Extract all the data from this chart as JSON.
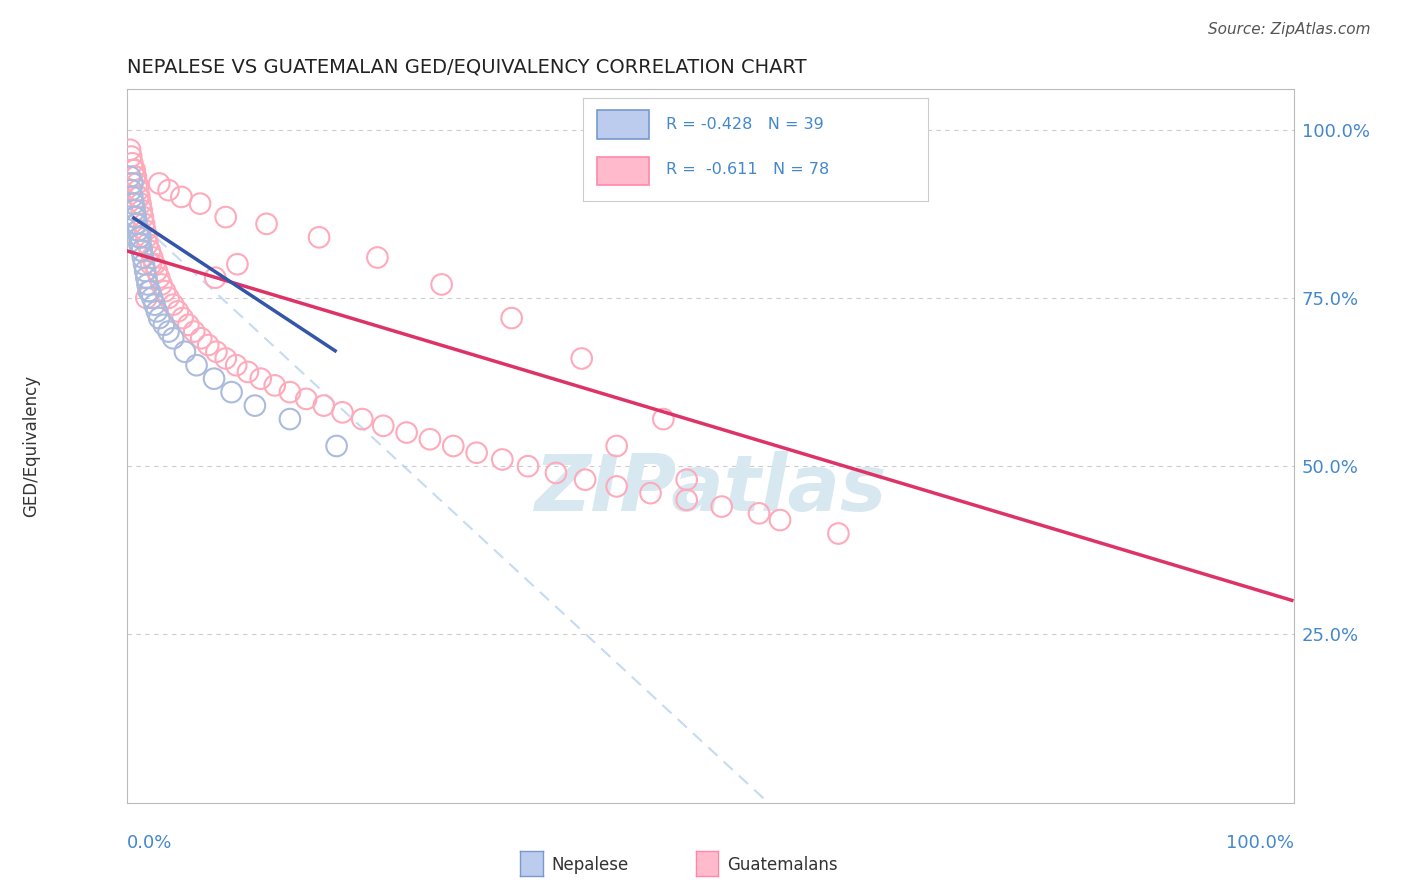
{
  "title": "NEPALESE VS GUATEMALAN GED/EQUIVALENCY CORRELATION CHART",
  "source": "Source: ZipAtlas.com",
  "ylabel": "GED/Equivalency",
  "nepalese_R": -0.428,
  "nepalese_N": 39,
  "guatemalan_R": -0.611,
  "guatemalan_N": 78,
  "blue_scatter_color": "#aabbdd",
  "pink_scatter_color": "#ffaabb",
  "blue_line_color": "#3355aa",
  "pink_line_color": "#dd3366",
  "blue_dash_color": "#aaccee",
  "axis_label_color": "#4488cc",
  "watermark_color": "#d8e8f0",
  "background_color": "#ffffff",
  "grid_color": "#cccccc",
  "ylim_low": 0.0,
  "ylim_high": 1.06,
  "xlim_low": 0.0,
  "xlim_high": 1.0,
  "yticks": [
    0.25,
    0.5,
    0.75,
    1.0
  ],
  "ytick_labels": [
    "25.0%",
    "50.0%",
    "75.0%",
    "100.0%"
  ],
  "nepalese_x": [
    0.003,
    0.004,
    0.005,
    0.005,
    0.006,
    0.007,
    0.007,
    0.008,
    0.008,
    0.009,
    0.01,
    0.01,
    0.011,
    0.011,
    0.012,
    0.012,
    0.013,
    0.013,
    0.014,
    0.015,
    0.016,
    0.017,
    0.018,
    0.019,
    0.02,
    0.022,
    0.024,
    0.026,
    0.028,
    0.032,
    0.036,
    0.04,
    0.05,
    0.06,
    0.075,
    0.09,
    0.11,
    0.14,
    0.18
  ],
  "nepalese_y": [
    0.93,
    0.91,
    0.92,
    0.9,
    0.89,
    0.88,
    0.87,
    0.87,
    0.86,
    0.86,
    0.85,
    0.85,
    0.84,
    0.83,
    0.84,
    0.83,
    0.82,
    0.82,
    0.81,
    0.8,
    0.79,
    0.78,
    0.77,
    0.76,
    0.76,
    0.75,
    0.74,
    0.73,
    0.72,
    0.71,
    0.7,
    0.69,
    0.67,
    0.65,
    0.63,
    0.61,
    0.59,
    0.57,
    0.53
  ],
  "guatemalan_x": [
    0.003,
    0.004,
    0.005,
    0.006,
    0.007,
    0.007,
    0.008,
    0.009,
    0.01,
    0.01,
    0.011,
    0.012,
    0.013,
    0.014,
    0.015,
    0.016,
    0.017,
    0.018,
    0.02,
    0.022,
    0.024,
    0.026,
    0.028,
    0.03,
    0.033,
    0.036,
    0.04,
    0.044,
    0.048,
    0.053,
    0.058,
    0.064,
    0.07,
    0.077,
    0.085,
    0.094,
    0.104,
    0.115,
    0.127,
    0.14,
    0.154,
    0.169,
    0.185,
    0.202,
    0.22,
    0.24,
    0.26,
    0.28,
    0.3,
    0.322,
    0.344,
    0.368,
    0.393,
    0.42,
    0.449,
    0.48,
    0.51,
    0.542,
    0.46,
    0.39,
    0.33,
    0.27,
    0.215,
    0.165,
    0.12,
    0.085,
    0.063,
    0.047,
    0.036,
    0.028,
    0.021,
    0.017,
    0.56,
    0.61,
    0.48,
    0.42,
    0.076,
    0.095
  ],
  "guatemalan_y": [
    0.97,
    0.96,
    0.95,
    0.94,
    0.94,
    0.93,
    0.93,
    0.92,
    0.91,
    0.9,
    0.9,
    0.89,
    0.88,
    0.87,
    0.86,
    0.85,
    0.84,
    0.83,
    0.82,
    0.81,
    0.8,
    0.79,
    0.78,
    0.77,
    0.76,
    0.75,
    0.74,
    0.73,
    0.72,
    0.71,
    0.7,
    0.69,
    0.68,
    0.67,
    0.66,
    0.65,
    0.64,
    0.63,
    0.62,
    0.61,
    0.6,
    0.59,
    0.58,
    0.57,
    0.56,
    0.55,
    0.54,
    0.53,
    0.52,
    0.51,
    0.5,
    0.49,
    0.48,
    0.47,
    0.46,
    0.45,
    0.44,
    0.43,
    0.57,
    0.66,
    0.72,
    0.77,
    0.81,
    0.84,
    0.86,
    0.87,
    0.89,
    0.9,
    0.91,
    0.92,
    0.8,
    0.75,
    0.42,
    0.4,
    0.48,
    0.53,
    0.78,
    0.8
  ],
  "gua_line_x0": 0.0,
  "gua_line_x1": 1.0,
  "gua_line_y0": 0.82,
  "gua_line_y1": 0.3,
  "nep_line_x0": 0.005,
  "nep_line_x1": 0.18,
  "nep_line_y0": 0.87,
  "nep_line_y1": 0.67,
  "dash_line_x0": 0.0,
  "dash_line_x1": 0.55,
  "dash_line_y0": 0.88,
  "dash_line_y1": 0.0
}
